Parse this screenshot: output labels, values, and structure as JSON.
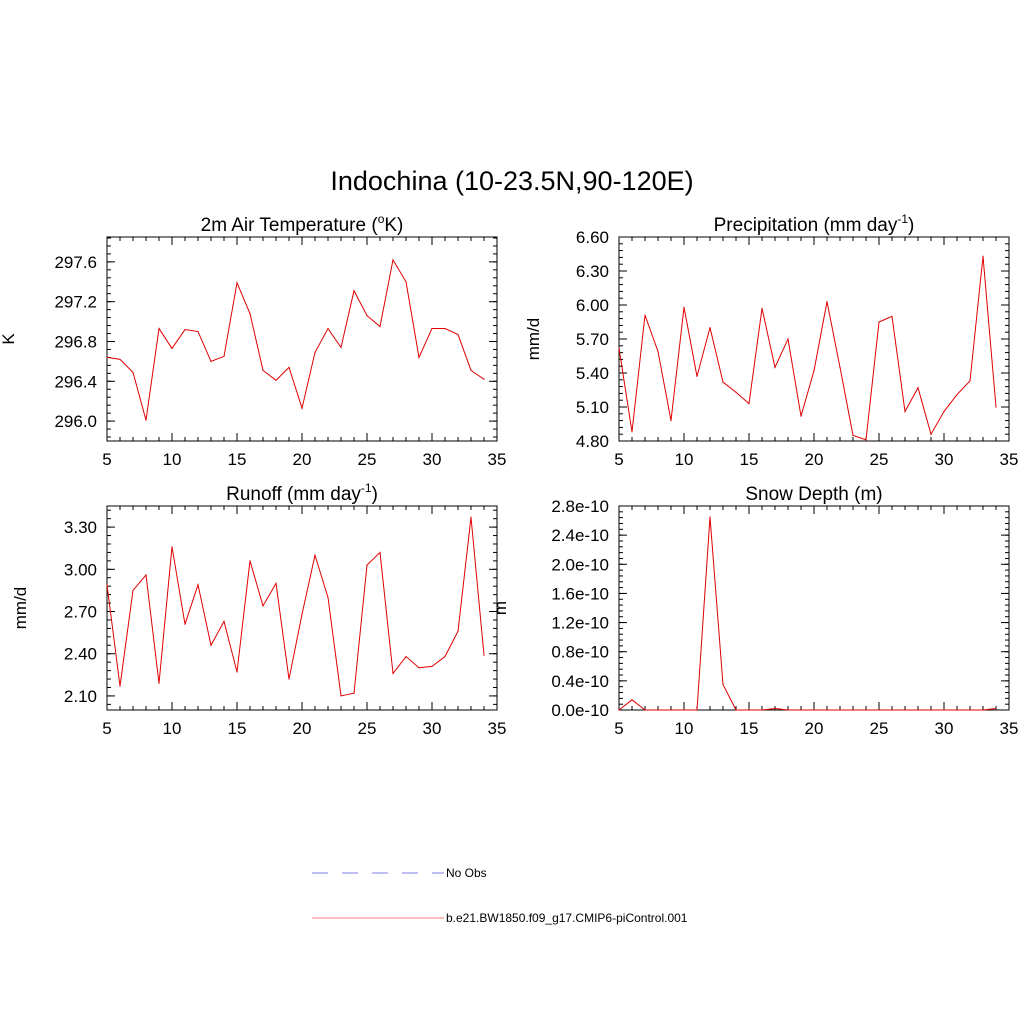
{
  "title": "Indochina (10-23.5N,90-120E)",
  "colors": {
    "model_line": "#e00000",
    "obs_line": "#9999ee",
    "axis": "#000000"
  },
  "legend": {
    "obs_label": "No Obs",
    "model_label": "b.e21.BW1850.f09_g17.CMIP6-piControl.001"
  },
  "chart_data": [
    {
      "type": "line",
      "title_prefix": "2m Air Temperature (",
      "title_sup": "o",
      "title_suffix": "K)",
      "ylabel": "K",
      "xlim": [
        5,
        35
      ],
      "ylim": [
        295.8,
        297.85
      ],
      "xticks": [
        5,
        10,
        15,
        20,
        25,
        30,
        35
      ],
      "xtick_labels": [
        "5",
        "10",
        "15",
        "20",
        "25",
        "30",
        "35"
      ],
      "yticks": [
        296.0,
        296.4,
        296.8,
        297.2,
        297.6
      ],
      "ytick_labels": [
        "296.0",
        "296.4",
        "296.8",
        "297.2",
        "297.6"
      ],
      "x_minor_step": 1,
      "y_minor_step": 0.08,
      "series": [
        {
          "name": "b.e21.BW1850.f09_g17.CMIP6-piControl.001",
          "x": [
            5,
            6,
            7,
            8,
            9,
            10,
            11,
            12,
            13,
            14,
            15,
            16,
            17,
            18,
            19,
            20,
            21,
            22,
            23,
            24,
            25,
            26,
            27,
            28,
            29,
            30,
            31,
            32,
            33,
            34
          ],
          "values": [
            296.64,
            296.62,
            296.49,
            296.01,
            296.93,
            296.73,
            296.92,
            296.9,
            296.6,
            296.65,
            297.39,
            297.08,
            296.51,
            296.41,
            296.54,
            296.13,
            296.69,
            296.93,
            296.74,
            297.31,
            297.06,
            296.95,
            297.62,
            297.4,
            296.64,
            296.93,
            296.93,
            296.87,
            296.51,
            296.42
          ]
        }
      ]
    },
    {
      "type": "line",
      "title_prefix": "Precipitation (mm day",
      "title_sup": "-1",
      "title_suffix": ")",
      "ylabel": "mm/d",
      "xlim": [
        5,
        35
      ],
      "ylim": [
        4.8,
        6.6
      ],
      "xticks": [
        5,
        10,
        15,
        20,
        25,
        30,
        35
      ],
      "xtick_labels": [
        "5",
        "10",
        "15",
        "20",
        "25",
        "30",
        "35"
      ],
      "yticks": [
        4.8,
        5.1,
        5.4,
        5.7,
        6.0,
        6.3,
        6.6
      ],
      "ytick_labels": [
        "4.80",
        "5.10",
        "5.40",
        "5.70",
        "6.00",
        "6.30",
        "6.60"
      ],
      "x_minor_step": 1,
      "y_minor_step": 0.06,
      "series": [
        {
          "name": "b.e21.BW1850.f09_g17.CMIP6-piControl.001",
          "x": [
            5,
            6,
            7,
            8,
            9,
            10,
            11,
            12,
            13,
            14,
            15,
            16,
            17,
            18,
            19,
            20,
            21,
            22,
            23,
            24,
            25,
            26,
            27,
            28,
            29,
            30,
            31,
            32,
            33,
            34
          ],
          "values": [
            5.62,
            4.88,
            5.91,
            5.59,
            4.98,
            5.98,
            5.37,
            5.8,
            5.32,
            5.23,
            5.13,
            5.97,
            5.45,
            5.7,
            5.02,
            5.42,
            6.03,
            5.45,
            4.85,
            4.81,
            5.85,
            5.9,
            5.06,
            5.27,
            4.86,
            5.06,
            5.21,
            5.33,
            6.43,
            5.1
          ]
        }
      ]
    },
    {
      "type": "line",
      "title_prefix": "Runoff (mm day",
      "title_sup": "-1",
      "title_suffix": ")",
      "ylabel": "mm/d",
      "xlim": [
        5,
        35
      ],
      "ylim": [
        2.0,
        3.45
      ],
      "xticks": [
        5,
        10,
        15,
        20,
        25,
        30,
        35
      ],
      "xtick_labels": [
        "5",
        "10",
        "15",
        "20",
        "25",
        "30",
        "35"
      ],
      "yticks": [
        2.1,
        2.4,
        2.7,
        3.0,
        3.3
      ],
      "ytick_labels": [
        "2.10",
        "2.40",
        "2.70",
        "3.00",
        "3.30"
      ],
      "x_minor_step": 1,
      "y_minor_step": 0.06,
      "series": [
        {
          "name": "b.e21.BW1850.f09_g17.CMIP6-piControl.001",
          "x": [
            5,
            6,
            7,
            8,
            9,
            10,
            11,
            12,
            13,
            14,
            15,
            16,
            17,
            18,
            19,
            20,
            21,
            22,
            23,
            24,
            25,
            26,
            27,
            28,
            29,
            30,
            31,
            32,
            33,
            34
          ],
          "values": [
            2.89,
            2.17,
            2.85,
            2.96,
            2.19,
            3.16,
            2.61,
            2.89,
            2.46,
            2.63,
            2.27,
            3.06,
            2.74,
            2.9,
            2.22,
            2.68,
            3.1,
            2.8,
            2.1,
            2.12,
            3.03,
            3.12,
            2.26,
            2.38,
            2.3,
            2.31,
            2.38,
            2.56,
            3.37,
            2.39
          ]
        }
      ]
    },
    {
      "type": "line",
      "title_prefix": "Snow Depth (m)",
      "title_sup": "",
      "title_suffix": "",
      "ylabel": "m",
      "xlim": [
        5,
        35
      ],
      "ylim": [
        0,
        2.8e-10
      ],
      "xticks": [
        5,
        10,
        15,
        20,
        25,
        30,
        35
      ],
      "xtick_labels": [
        "5",
        "10",
        "15",
        "20",
        "25",
        "30",
        "35"
      ],
      "yticks": [
        0,
        4e-11,
        8e-11,
        1.2e-10,
        1.6e-10,
        2e-10,
        2.4e-10,
        2.8e-10
      ],
      "ytick_labels": [
        "0.0e-10",
        "0.4e-10",
        "0.8e-10",
        "1.2e-10",
        "1.6e-10",
        "2.0e-10",
        "2.4e-10",
        "2.8e-10"
      ],
      "x_minor_step": 1,
      "y_minor_step": 8e-12,
      "series": [
        {
          "name": "b.e21.BW1850.f09_g17.CMIP6-piControl.001",
          "x": [
            5,
            6,
            7,
            8,
            9,
            10,
            11,
            12,
            13,
            14,
            15,
            16,
            17,
            18,
            19,
            20,
            21,
            22,
            23,
            24,
            25,
            26,
            27,
            28,
            29,
            30,
            31,
            32,
            33,
            34
          ],
          "values": [
            0,
            1.4e-11,
            0,
            0,
            0,
            0,
            0,
            2.65e-10,
            3.5e-11,
            0,
            0,
            0,
            2e-12,
            0,
            0,
            0,
            0,
            0,
            0,
            0,
            0,
            0,
            0,
            0,
            0,
            0,
            0,
            0,
            0,
            2e-12
          ]
        }
      ]
    }
  ]
}
